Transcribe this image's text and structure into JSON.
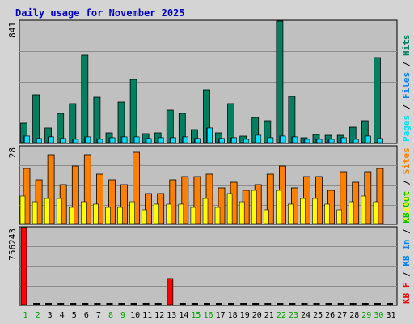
{
  "title": "Daily usage for November 2025",
  "colors": {
    "frame_bg": "#d4d4d4",
    "plot_bg": "#c0c0c0",
    "grid": "#8c8c8c",
    "title": "#0000c0",
    "hits": "#008060",
    "files": "#0080ff",
    "pages": "#00e0ff",
    "visits": "#ffff00",
    "sites": "#ff8000",
    "kb_out": "#00c000",
    "kb_in": "#0080ff",
    "kb_f": "#ff0000",
    "day_weekend": "#00a000",
    "day_normal": "#000000",
    "zero_mark": "#000000"
  },
  "chart_data": [
    {
      "type": "bar",
      "panel": "hits-files-pages",
      "ymax": 841,
      "ymax_label": "841",
      "grid": true,
      "legend": [
        "Pages",
        "/",
        "Files",
        "/",
        "Hits"
      ],
      "legend_colors": [
        "#00e0ff",
        "#000000",
        "#0080ff",
        "#000000",
        "#008060"
      ],
      "categories": [
        "1",
        "2",
        "3",
        "4",
        "5",
        "6",
        "7",
        "8",
        "9",
        "10",
        "11",
        "12",
        "13",
        "14",
        "15",
        "16",
        "17",
        "18",
        "19",
        "20",
        "21",
        "22",
        "23",
        "24",
        "25",
        "26",
        "27",
        "28",
        "29",
        "30",
        "31"
      ],
      "series": [
        {
          "name": "Hits",
          "color": "#008060",
          "values": [
            135,
            330,
            103,
            200,
            270,
            603,
            315,
            65,
            280,
            435,
            60,
            70,
            225,
            200,
            90,
            365,
            65,
            270,
            45,
            175,
            150,
            841,
            320,
            35,
            55,
            50,
            50,
            105,
            150,
            590,
            0
          ]
        },
        {
          "name": "Files",
          "color": "#0080ff",
          "values": [
            45,
            30,
            40,
            30,
            25,
            40,
            20,
            35,
            40,
            40,
            30,
            35,
            35,
            40,
            30,
            100,
            30,
            35,
            25,
            50,
            35,
            45,
            40,
            20,
            25,
            25,
            35,
            25,
            45,
            30,
            0
          ]
        },
        {
          "name": "Pages",
          "color": "#00e0ff",
          "values": [
            45,
            30,
            40,
            30,
            25,
            40,
            20,
            35,
            40,
            40,
            30,
            35,
            35,
            40,
            30,
            100,
            30,
            35,
            25,
            50,
            35,
            45,
            40,
            20,
            25,
            25,
            35,
            25,
            45,
            30,
            0
          ]
        }
      ]
    },
    {
      "type": "bar",
      "panel": "visits-sites",
      "ymax": 28,
      "ymax_label": "28",
      "grid": true,
      "legend": [
        "Visits",
        "/",
        "Sites"
      ],
      "legend_colors": [
        "#ffff00",
        "#000000",
        "#ff8000"
      ],
      "categories": [
        "1",
        "2",
        "3",
        "4",
        "5",
        "6",
        "7",
        "8",
        "9",
        "10",
        "11",
        "12",
        "13",
        "14",
        "15",
        "16",
        "17",
        "18",
        "19",
        "20",
        "21",
        "22",
        "23",
        "24",
        "25",
        "26",
        "27",
        "28",
        "29",
        "30",
        "31"
      ],
      "series": [
        {
          "name": "Visits",
          "color": "#ffff00",
          "values": [
            10,
            8,
            9,
            9,
            6,
            8,
            7,
            6,
            6,
            8,
            5,
            7,
            7,
            7,
            6,
            9,
            6,
            11,
            8,
            12,
            5,
            12,
            7,
            9,
            9,
            7,
            5,
            8,
            10,
            8,
            0
          ]
        },
        {
          "name": "Sites",
          "color": "#ff8000",
          "values": [
            20,
            16,
            25,
            14,
            21,
            25,
            18,
            16,
            14,
            26,
            11,
            11,
            16,
            17,
            17,
            18,
            13,
            15,
            12,
            14,
            18,
            21,
            13,
            17,
            17,
            12,
            19,
            15,
            19,
            20,
            0
          ]
        }
      ]
    },
    {
      "type": "bar",
      "panel": "kbytes",
      "ymax": 756243,
      "ymax_label": "756243",
      "grid": true,
      "legend": [
        "KB F",
        "/",
        "KB In",
        "/",
        "KB Out"
      ],
      "legend_colors": [
        "#ff0000",
        "#000000",
        "#0080ff",
        "#000000",
        "#00c000"
      ],
      "categories": [
        "1",
        "2",
        "3",
        "4",
        "5",
        "6",
        "7",
        "8",
        "9",
        "10",
        "11",
        "12",
        "13",
        "14",
        "15",
        "16",
        "17",
        "18",
        "19",
        "20",
        "21",
        "22",
        "23",
        "24",
        "25",
        "26",
        "27",
        "28",
        "29",
        "30",
        "31"
      ],
      "series": [
        {
          "name": "KB F",
          "color": "#ff0000",
          "values": [
            756243,
            0,
            0,
            0,
            0,
            0,
            0,
            0,
            0,
            0,
            0,
            0,
            255000,
            0,
            0,
            0,
            0,
            0,
            0,
            0,
            0,
            0,
            0,
            0,
            0,
            0,
            0,
            0,
            0,
            0,
            0
          ]
        }
      ]
    }
  ],
  "day_labels": {
    "weekend": [
      "1",
      "2",
      "8",
      "9",
      "15",
      "16",
      "22",
      "23",
      "29",
      "30"
    ]
  }
}
